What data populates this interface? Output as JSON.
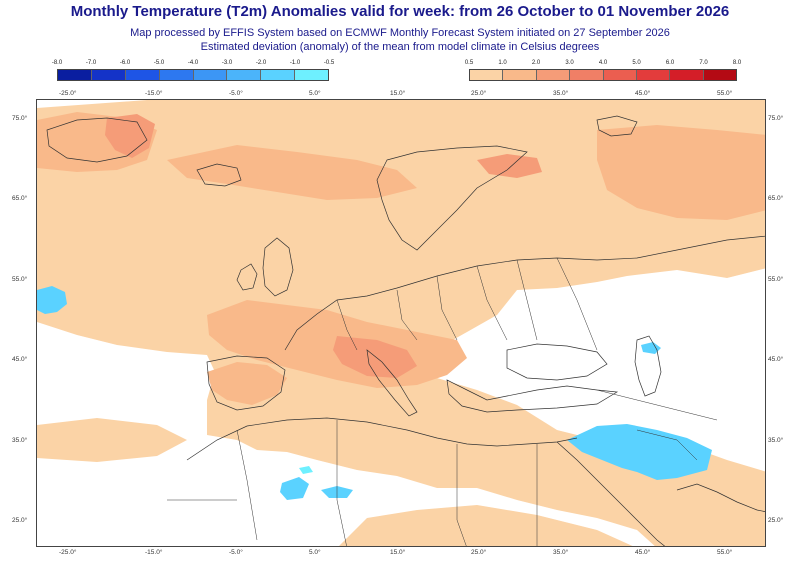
{
  "header": {
    "title": "Monthly Temperature (T2m) Anomalies valid for week: from 26 October to 01 November 2026",
    "subtitle1": "Map processed by EFFIS System based on ECMWF Monthly Forecast System initiated on 27 September 2026",
    "subtitle2": "Estimated deviation (anomaly) of the mean from model climate in Celsius degrees"
  },
  "legend_cold": {
    "ticks": [
      "-8.0",
      "-7.0",
      "-6.0",
      "-5.0",
      "-4.0",
      "-3.0",
      "-2.0",
      "-1.0",
      "-0.5"
    ],
    "colors": [
      "#0a1ea0",
      "#1433c8",
      "#1e55e6",
      "#2d78f0",
      "#3c96f5",
      "#4bb4fa",
      "#5ad2ff",
      "#6ef0ff"
    ]
  },
  "legend_warm": {
    "ticks": [
      "0.5",
      "1.0",
      "2.0",
      "3.0",
      "4.0",
      "5.0",
      "6.0",
      "7.0",
      "8.0"
    ],
    "colors": [
      "#fbd3a6",
      "#f9b98a",
      "#f59c78",
      "#f07f66",
      "#eb5e50",
      "#e33c3c",
      "#d41e28",
      "#b40a14"
    ]
  },
  "map": {
    "top_lon_labels": [
      "-25.0°",
      "-15.0°",
      "-5.0°",
      "5.0°",
      "15.0°",
      "25.0°",
      "35.0°",
      "45.0°",
      "55.0°"
    ],
    "bottom_lon_labels": [
      "-25.0°",
      "-15.0°",
      "-5.0°",
      "5.0°",
      "15.0°",
      "25.0°",
      "35.0°",
      "45.0°",
      "55.0°"
    ],
    "lat_labels": [
      "75.0°",
      "65.0°",
      "55.0°",
      "45.0°",
      "35.0°",
      "25.0°"
    ],
    "colors": {
      "warm_light": "#fbd3a6",
      "warm_mid": "#f9b98a",
      "warm_strong": "#f59c78",
      "cold": "#5ad2ff",
      "cold_light": "#6ef0ff",
      "land_line": "#333333",
      "background": "#ffffff"
    }
  }
}
